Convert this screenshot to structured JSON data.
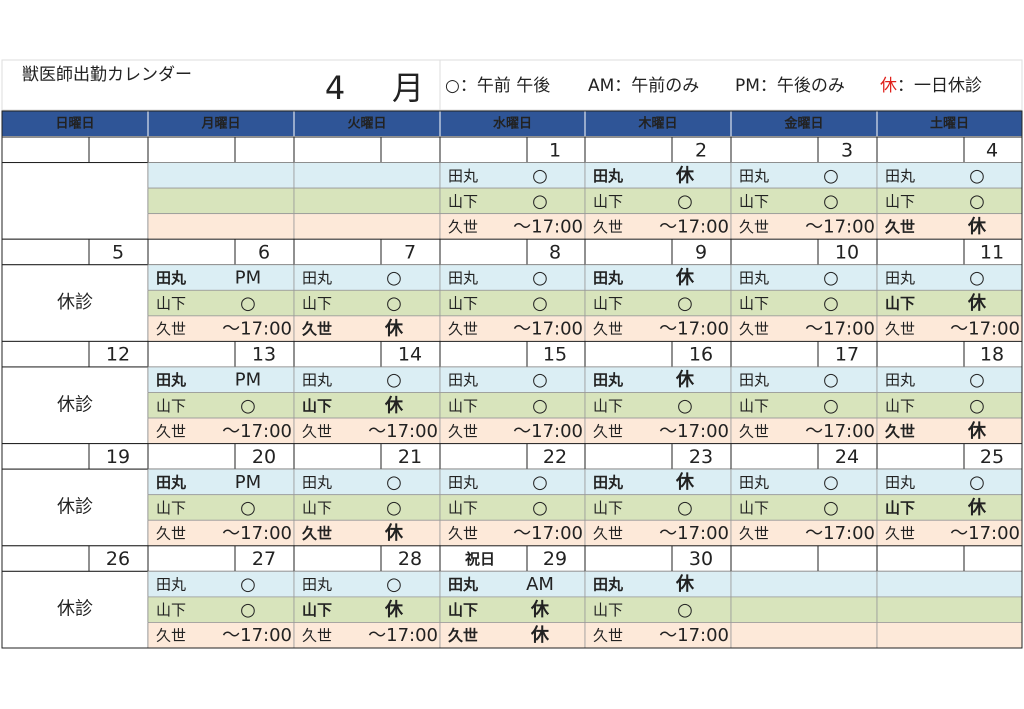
{
  "header": {
    "title": "獣医師出勤カレンダー",
    "month": 4,
    "month_unit": "月",
    "legend": [
      {
        "mark": "○",
        "text": "：午前 午後"
      },
      {
        "mark": "AM",
        "text": "：午前のみ"
      },
      {
        "mark": "PM",
        "text": "：午後のみ"
      },
      {
        "mark": "休",
        "text": "：一日休診"
      }
    ]
  },
  "weekdays": [
    "日曜日",
    "月曜日",
    "火曜日",
    "水曜日",
    "木曜日",
    "金曜日",
    "土曜日"
  ],
  "weeks": [
    {
      "days": [
        null,
        null,
        null,
        {
          "date": 1,
          "staff": [
            {
              "name": "田丸",
              "status": "○"
            },
            {
              "name": "山下",
              "status": "○"
            },
            {
              "name": "久世",
              "status": "～17:00"
            }
          ]
        },
        {
          "date": 2,
          "staff": [
            {
              "name": "田丸",
              "status": "休"
            },
            {
              "name": "山下",
              "status": "○"
            },
            {
              "name": "久世",
              "status": "～17:00"
            }
          ]
        },
        {
          "date": 3,
          "staff": [
            {
              "name": "田丸",
              "status": "○"
            },
            {
              "name": "山下",
              "status": "○"
            },
            {
              "name": "久世",
              "status": "～17:00"
            }
          ]
        },
        {
          "date": 4,
          "staff": [
            {
              "name": "田丸",
              "status": "○"
            },
            {
              "name": "山下",
              "status": "○"
            },
            {
              "name": "久世",
              "status": "休"
            }
          ]
        }
      ]
    },
    {
      "days": [
        {
          "date": 5,
          "closed": "休診"
        },
        {
          "date": 6,
          "staff": [
            {
              "name": "田丸",
              "status": "PM"
            },
            {
              "name": "山下",
              "status": "○"
            },
            {
              "name": "久世",
              "status": "～17:00"
            }
          ]
        },
        {
          "date": 7,
          "staff": [
            {
              "name": "田丸",
              "status": "○"
            },
            {
              "name": "山下",
              "status": "○"
            },
            {
              "name": "久世",
              "status": "休"
            }
          ]
        },
        {
          "date": 8,
          "staff": [
            {
              "name": "田丸",
              "status": "○"
            },
            {
              "name": "山下",
              "status": "○"
            },
            {
              "name": "久世",
              "status": "～17:00"
            }
          ]
        },
        {
          "date": 9,
          "staff": [
            {
              "name": "田丸",
              "status": "休"
            },
            {
              "name": "山下",
              "status": "○"
            },
            {
              "name": "久世",
              "status": "～17:00"
            }
          ]
        },
        {
          "date": 10,
          "staff": [
            {
              "name": "田丸",
              "status": "○"
            },
            {
              "name": "山下",
              "status": "○"
            },
            {
              "name": "久世",
              "status": "～17:00"
            }
          ]
        },
        {
          "date": 11,
          "staff": [
            {
              "name": "田丸",
              "status": "○"
            },
            {
              "name": "山下",
              "status": "休"
            },
            {
              "name": "久世",
              "status": "～17:00"
            }
          ]
        }
      ]
    },
    {
      "days": [
        {
          "date": 12,
          "closed": "休診"
        },
        {
          "date": 13,
          "staff": [
            {
              "name": "田丸",
              "status": "PM"
            },
            {
              "name": "山下",
              "status": "○"
            },
            {
              "name": "久世",
              "status": "～17:00"
            }
          ]
        },
        {
          "date": 14,
          "staff": [
            {
              "name": "田丸",
              "status": "○"
            },
            {
              "name": "山下",
              "status": "休"
            },
            {
              "name": "久世",
              "status": "～17:00"
            }
          ]
        },
        {
          "date": 15,
          "staff": [
            {
              "name": "田丸",
              "status": "○"
            },
            {
              "name": "山下",
              "status": "○"
            },
            {
              "name": "久世",
              "status": "～17:00"
            }
          ]
        },
        {
          "date": 16,
          "staff": [
            {
              "name": "田丸",
              "status": "休"
            },
            {
              "name": "山下",
              "status": "○"
            },
            {
              "name": "久世",
              "status": "～17:00"
            }
          ]
        },
        {
          "date": 17,
          "staff": [
            {
              "name": "田丸",
              "status": "○"
            },
            {
              "name": "山下",
              "status": "○"
            },
            {
              "name": "久世",
              "status": "～17:00"
            }
          ]
        },
        {
          "date": 18,
          "staff": [
            {
              "name": "田丸",
              "status": "○"
            },
            {
              "name": "山下",
              "status": "○"
            },
            {
              "name": "久世",
              "status": "休"
            }
          ]
        }
      ]
    },
    {
      "days": [
        {
          "date": 19,
          "closed": "休診"
        },
        {
          "date": 20,
          "staff": [
            {
              "name": "田丸",
              "status": "PM"
            },
            {
              "name": "山下",
              "status": "○"
            },
            {
              "name": "久世",
              "status": "～17:00"
            }
          ]
        },
        {
          "date": 21,
          "staff": [
            {
              "name": "田丸",
              "status": "○"
            },
            {
              "name": "山下",
              "status": "○"
            },
            {
              "name": "久世",
              "status": "休"
            }
          ]
        },
        {
          "date": 22,
          "staff": [
            {
              "name": "田丸",
              "status": "○"
            },
            {
              "name": "山下",
              "status": "○"
            },
            {
              "name": "久世",
              "status": "～17:00"
            }
          ]
        },
        {
          "date": 23,
          "staff": [
            {
              "name": "田丸",
              "status": "休"
            },
            {
              "name": "山下",
              "status": "○"
            },
            {
              "name": "久世",
              "status": "～17:00"
            }
          ]
        },
        {
          "date": 24,
          "staff": [
            {
              "name": "田丸",
              "status": "○"
            },
            {
              "name": "山下",
              "status": "○"
            },
            {
              "name": "久世",
              "status": "～17:00"
            }
          ]
        },
        {
          "date": 25,
          "staff": [
            {
              "name": "田丸",
              "status": "○"
            },
            {
              "name": "山下",
              "status": "休"
            },
            {
              "name": "久世",
              "status": "～17:00"
            }
          ]
        }
      ]
    },
    {
      "days": [
        {
          "date": 26,
          "closed": "休診"
        },
        {
          "date": 27,
          "staff": [
            {
              "name": "田丸",
              "status": "○"
            },
            {
              "name": "山下",
              "status": "○"
            },
            {
              "name": "久世",
              "status": "～17:00"
            }
          ]
        },
        {
          "date": 28,
          "staff": [
            {
              "name": "田丸",
              "status": "○"
            },
            {
              "name": "山下",
              "status": "休"
            },
            {
              "name": "久世",
              "status": "～17:00"
            }
          ]
        },
        {
          "date": 29,
          "holiday": "祝日",
          "staff": [
            {
              "name": "田丸",
              "status": "AM"
            },
            {
              "name": "山下",
              "status": "休"
            },
            {
              "name": "久世",
              "status": "休"
            }
          ]
        },
        {
          "date": 30,
          "staff": [
            {
              "name": "田丸",
              "status": "休"
            },
            {
              "name": "山下",
              "status": "○"
            },
            {
              "name": "久世",
              "status": "～17:00"
            }
          ]
        },
        null,
        null
      ]
    }
  ]
}
